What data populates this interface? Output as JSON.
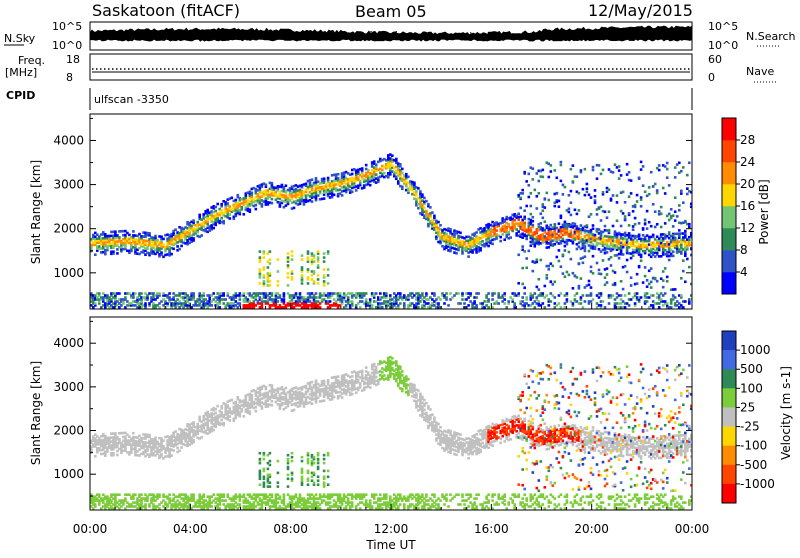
{
  "header": {
    "station": "Saskatoon (fitACF)",
    "beam": "Beam 05",
    "date": "12/May/2015"
  },
  "noise_panel": {
    "left_label": "N.Sky",
    "right_label": "N.Search",
    "left_ticks": [
      "10^5",
      "10^0"
    ],
    "right_ticks": [
      "10^5",
      "10^0"
    ]
  },
  "freq_panel": {
    "left_label_top": "Freq.",
    "left_label_unit": "[MHz]",
    "left_ticks": [
      "18",
      "8"
    ],
    "right_ticks": [
      "60",
      "0"
    ],
    "right_label": "Nave"
  },
  "cpid": {
    "label": "CPID",
    "value": "ulfscan -3350"
  },
  "chart_data": [
    {
      "type": "heatmap",
      "name": "Power",
      "ylabel": "Slant Range [km]",
      "xlabel": "",
      "xlim": [
        "00:00",
        "24:00"
      ],
      "ylim": [
        180,
        4600
      ],
      "yticks": [
        1000,
        2000,
        3000,
        4000
      ],
      "colorbar": {
        "label": "Power [dB]",
        "ticks": [
          "4",
          "8",
          "12",
          "16",
          "20",
          "24",
          "28"
        ],
        "colors": [
          "#0000ff",
          "#2e52c8",
          "#2e8b57",
          "#74c476",
          "#ffd700",
          "#ff8c00",
          "#ff4500",
          "#ff0000"
        ]
      },
      "echo_band": [
        {
          "t": 0,
          "r": 1650
        },
        {
          "t": 1.5,
          "r": 1700
        },
        {
          "t": 3,
          "r": 1600
        },
        {
          "t": 4,
          "r": 1950
        },
        {
          "t": 5,
          "r": 2300
        },
        {
          "t": 6,
          "r": 2550
        },
        {
          "t": 7,
          "r": 2800
        },
        {
          "t": 8,
          "r": 2700
        },
        {
          "t": 9,
          "r": 2900
        },
        {
          "t": 10,
          "r": 3000
        },
        {
          "t": 11,
          "r": 3200
        },
        {
          "t": 12,
          "r": 3450
        },
        {
          "t": 13,
          "r": 2700
        },
        {
          "t": 14,
          "r": 1800
        },
        {
          "t": 15,
          "r": 1600
        },
        {
          "t": 16,
          "r": 1900
        },
        {
          "t": 17,
          "r": 2100
        },
        {
          "t": 18,
          "r": 1800
        },
        {
          "t": 19,
          "r": 1900
        },
        {
          "t": 20,
          "r": 1750
        },
        {
          "t": 22,
          "r": 1600
        },
        {
          "t": 24,
          "r": 1650
        }
      ]
    },
    {
      "type": "heatmap",
      "name": "Velocity",
      "ylabel": "Slant Range [km]",
      "xlabel": "Time UT",
      "xticks": [
        "00:00",
        "04:00",
        "08:00",
        "12:00",
        "16:00",
        "20:00",
        "00:00"
      ],
      "xlim": [
        "00:00",
        "24:00"
      ],
      "ylim": [
        180,
        4600
      ],
      "yticks": [
        1000,
        2000,
        3000,
        4000
      ],
      "colorbar": {
        "label": "Velocity [m s-1]",
        "ticks": [
          "1000",
          "500",
          "100",
          "25",
          "-25",
          "-100",
          "-500",
          "-1000"
        ],
        "colors": [
          "#1f3fbf",
          "#4169e1",
          "#2e8b57",
          "#7ccd3a",
          "#c0c0c0",
          "#ffd700",
          "#ff8c00",
          "#ff4500",
          "#ff0000"
        ]
      }
    }
  ]
}
